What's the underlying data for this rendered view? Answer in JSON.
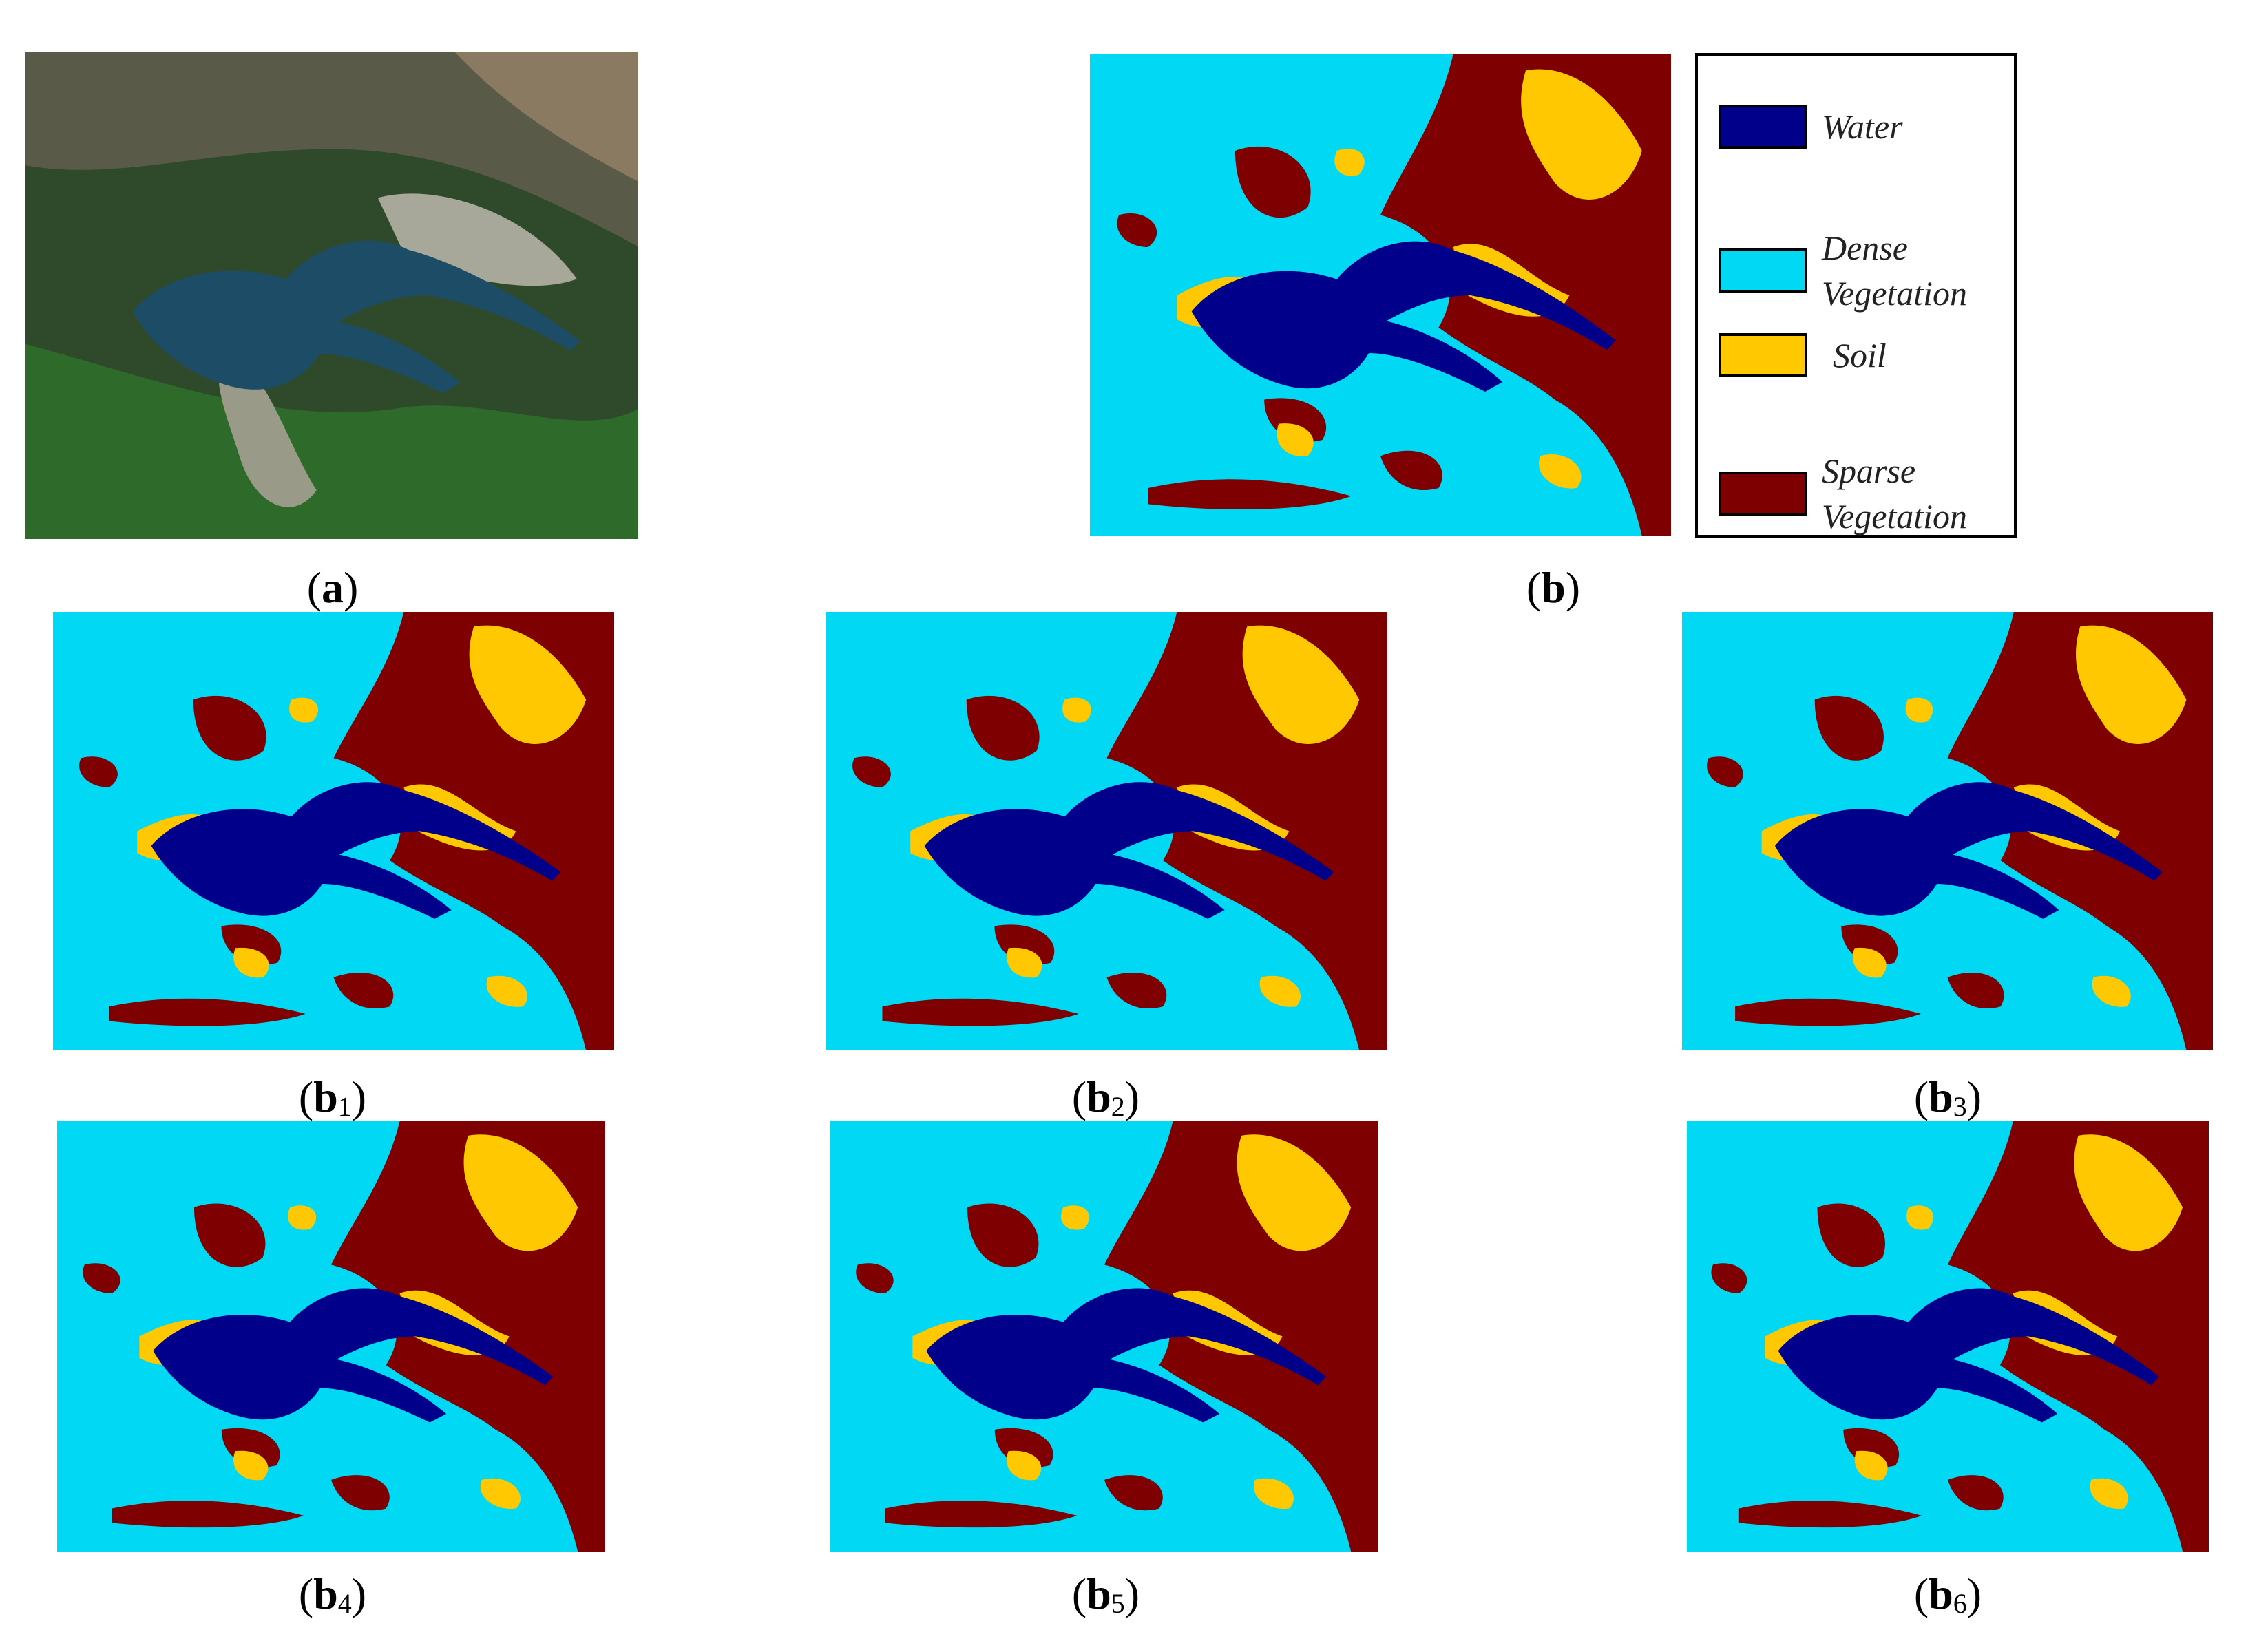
{
  "caption_brackets": [
    "(",
    ")"
  ],
  "panels": [
    {
      "letter": "a"
    },
    {
      "letter": "b"
    },
    {
      "letter": "b",
      "index": "1"
    },
    {
      "letter": "b",
      "index": "2"
    },
    {
      "letter": "b",
      "index": "3"
    },
    {
      "letter": "b",
      "index": "4"
    },
    {
      "letter": "b",
      "index": "5"
    },
    {
      "letter": "b",
      "index": "6"
    }
  ],
  "legend": [
    {
      "lines": [
        "Water"
      ],
      "color": "#00008b"
    },
    {
      "lines": [
        "Dense",
        "Vegetation"
      ],
      "color": "#00d8f4"
    },
    {
      "lines": [
        "Soil"
      ],
      "color": "#ffc800"
    },
    {
      "lines": [
        "Sparse",
        "Vegetation"
      ],
      "color": "#7f0000"
    }
  ]
}
